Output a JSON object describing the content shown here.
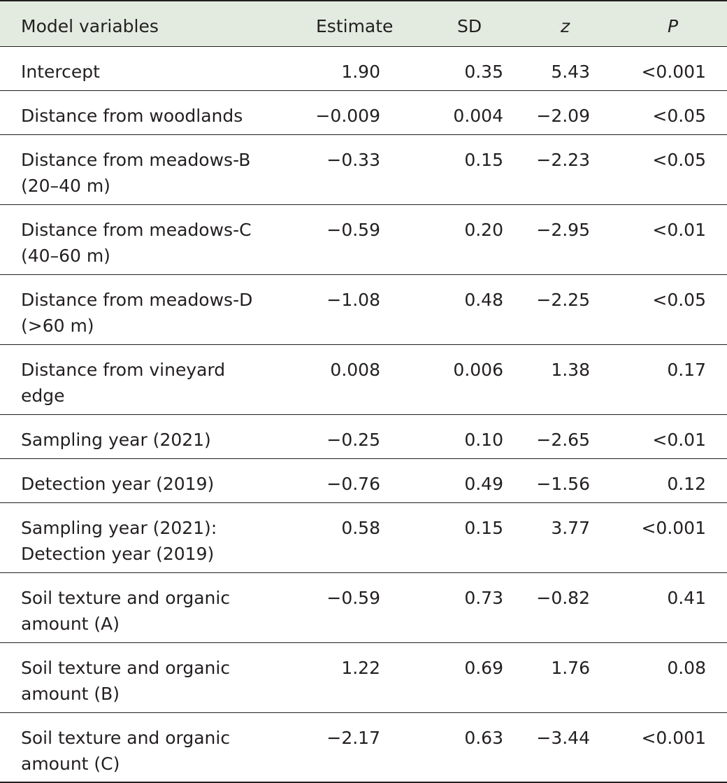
{
  "table": {
    "headers": [
      "Model variables",
      "Estimate",
      "SD",
      "z",
      "P"
    ],
    "rows": [
      {
        "variable_lines": [
          "Intercept"
        ],
        "estimate": "1.90",
        "sd": "0.35",
        "z": "5.43",
        "p": "<0.001"
      },
      {
        "variable_lines": [
          "Distance from woodlands"
        ],
        "estimate": "−0.009",
        "sd": "0.004",
        "z": "−2.09",
        "p": "<0.05"
      },
      {
        "variable_lines": [
          "Distance from meadows-B",
          "(20–40 m)"
        ],
        "estimate": "−0.33",
        "sd": "0.15",
        "z": "−2.23",
        "p": "<0.05"
      },
      {
        "variable_lines": [
          "Distance from meadows-C",
          "(40–60 m)"
        ],
        "estimate": "−0.59",
        "sd": "0.20",
        "z": "−2.95",
        "p": "<0.01"
      },
      {
        "variable_lines": [
          "Distance from meadows-D",
          "(>60 m)"
        ],
        "estimate": "−1.08",
        "sd": "0.48",
        "z": "−2.25",
        "p": "<0.05"
      },
      {
        "variable_lines": [
          "Distance from vineyard",
          "edge"
        ],
        "estimate": "0.008",
        "sd": "0.006",
        "z": "1.38",
        "p": "0.17"
      },
      {
        "variable_lines": [
          "Sampling year (2021)"
        ],
        "estimate": "−0.25",
        "sd": "0.10",
        "z": "−2.65",
        "p": "<0.01"
      },
      {
        "variable_lines": [
          "Detection year (2019)"
        ],
        "estimate": "−0.76",
        "sd": "0.49",
        "z": "−1.56",
        "p": "0.12"
      },
      {
        "variable_lines": [
          "Sampling year (2021):",
          "Detection year (2019)"
        ],
        "estimate": "0.58",
        "sd": "0.15",
        "z": "3.77",
        "p": "<0.001"
      },
      {
        "variable_lines": [
          "Soil texture and organic",
          "amount (A)"
        ],
        "estimate": "−0.59",
        "sd": "0.73",
        "z": "−0.82",
        "p": "0.41"
      },
      {
        "variable_lines": [
          "Soil texture and organic",
          "amount (B)"
        ],
        "estimate": "1.22",
        "sd": "0.69",
        "z": "1.76",
        "p": "0.08"
      },
      {
        "variable_lines": [
          "Soil texture and organic",
          "amount (C)"
        ],
        "estimate": "−2.17",
        "sd": "0.63",
        "z": "−3.44",
        "p": "<0.001"
      }
    ]
  }
}
